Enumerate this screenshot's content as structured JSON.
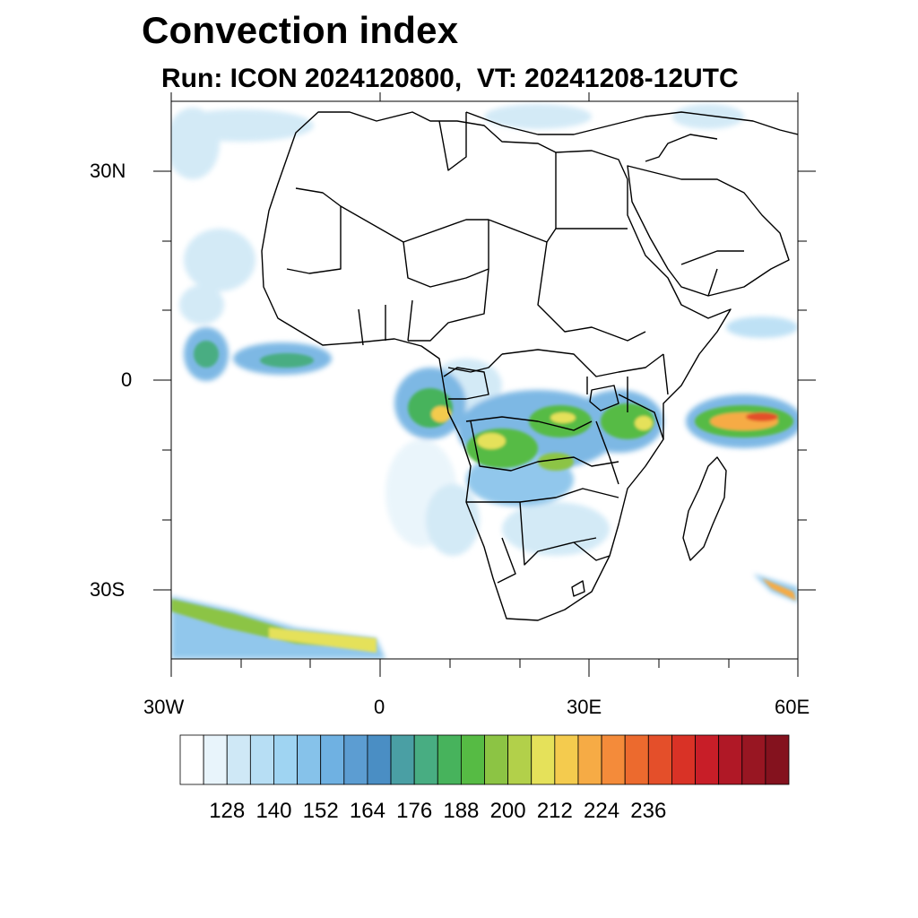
{
  "title": "Convection index",
  "subtitle": "Run: ICON 2024120800,  VT: 20241208-12UTC",
  "map": {
    "lon_range": [
      -30,
      60
    ],
    "lat_range": [
      -40,
      40
    ],
    "lat_labels": [
      "30N",
      "0",
      "30S"
    ],
    "lon_labels": [
      "30W",
      "0",
      "30E",
      "60E"
    ]
  },
  "colorbar": {
    "colors": [
      "#ffffff",
      "#e8f4fb",
      "#cfe8f6",
      "#b7def4",
      "#9fd4f2",
      "#86c2ea",
      "#6fb1e2",
      "#5c9dd2",
      "#4a8ec4",
      "#4a9fa4",
      "#48ad82",
      "#47b35c",
      "#56bb44",
      "#8cc444",
      "#b2d04a",
      "#e5e15a",
      "#f4cb4e",
      "#f6ab45",
      "#f48b3a",
      "#ec6a2e",
      "#e44f2a",
      "#d93226",
      "#c81e28",
      "#b01826",
      "#981622",
      "#84121e"
    ],
    "labels": [
      "128",
      "140",
      "152",
      "164",
      "176",
      "188",
      "200",
      "212",
      "224",
      "236"
    ]
  }
}
